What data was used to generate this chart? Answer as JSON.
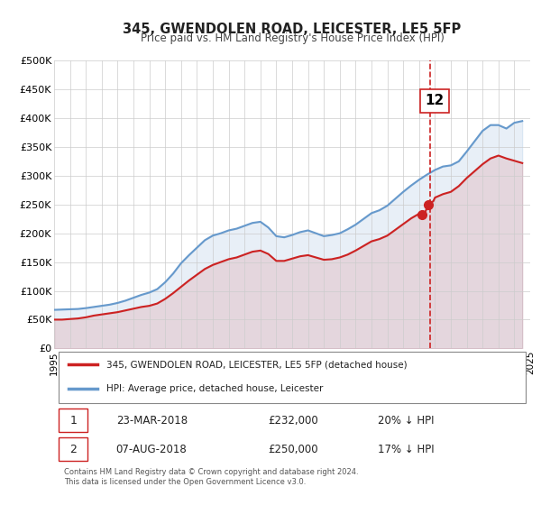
{
  "title": "345, GWENDOLEN ROAD, LEICESTER, LE5 5FP",
  "subtitle": "Price paid vs. HM Land Registry's House Price Index (HPI)",
  "ylabel": "",
  "xlim": [
    1995,
    2025
  ],
  "ylim": [
    0,
    500000
  ],
  "yticks": [
    0,
    50000,
    100000,
    150000,
    200000,
    250000,
    300000,
    350000,
    400000,
    450000,
    500000
  ],
  "ytick_labels": [
    "£0",
    "£50K",
    "£100K",
    "£150K",
    "£200K",
    "£250K",
    "£300K",
    "£350K",
    "£400K",
    "£450K",
    "£500K"
  ],
  "xticks": [
    1995,
    1996,
    1997,
    1998,
    1999,
    2000,
    2001,
    2002,
    2003,
    2004,
    2005,
    2006,
    2007,
    2008,
    2009,
    2010,
    2011,
    2012,
    2013,
    2014,
    2015,
    2016,
    2017,
    2018,
    2019,
    2020,
    2021,
    2022,
    2023,
    2024,
    2025
  ],
  "hpi_color": "#6699cc",
  "price_color": "#cc2222",
  "dot_color": "#cc2222",
  "vline_color": "#cc2222",
  "vline_x": 2018.7,
  "annotation_label": "12",
  "sale1_date": "23-MAR-2018",
  "sale1_price": "£232,000",
  "sale1_hpi": "20% ↓ HPI",
  "sale2_date": "07-AUG-2018",
  "sale2_price": "£250,000",
  "sale2_hpi": "17% ↓ HPI",
  "legend_label1": "345, GWENDOLEN ROAD, LEICESTER, LE5 5FP (detached house)",
  "legend_label2": "HPI: Average price, detached house, Leicester",
  "footer": "Contains HM Land Registry data © Crown copyright and database right 2024.\nThis data is licensed under the Open Government Licence v3.0.",
  "bg_color": "#ffffff",
  "grid_color": "#cccccc"
}
